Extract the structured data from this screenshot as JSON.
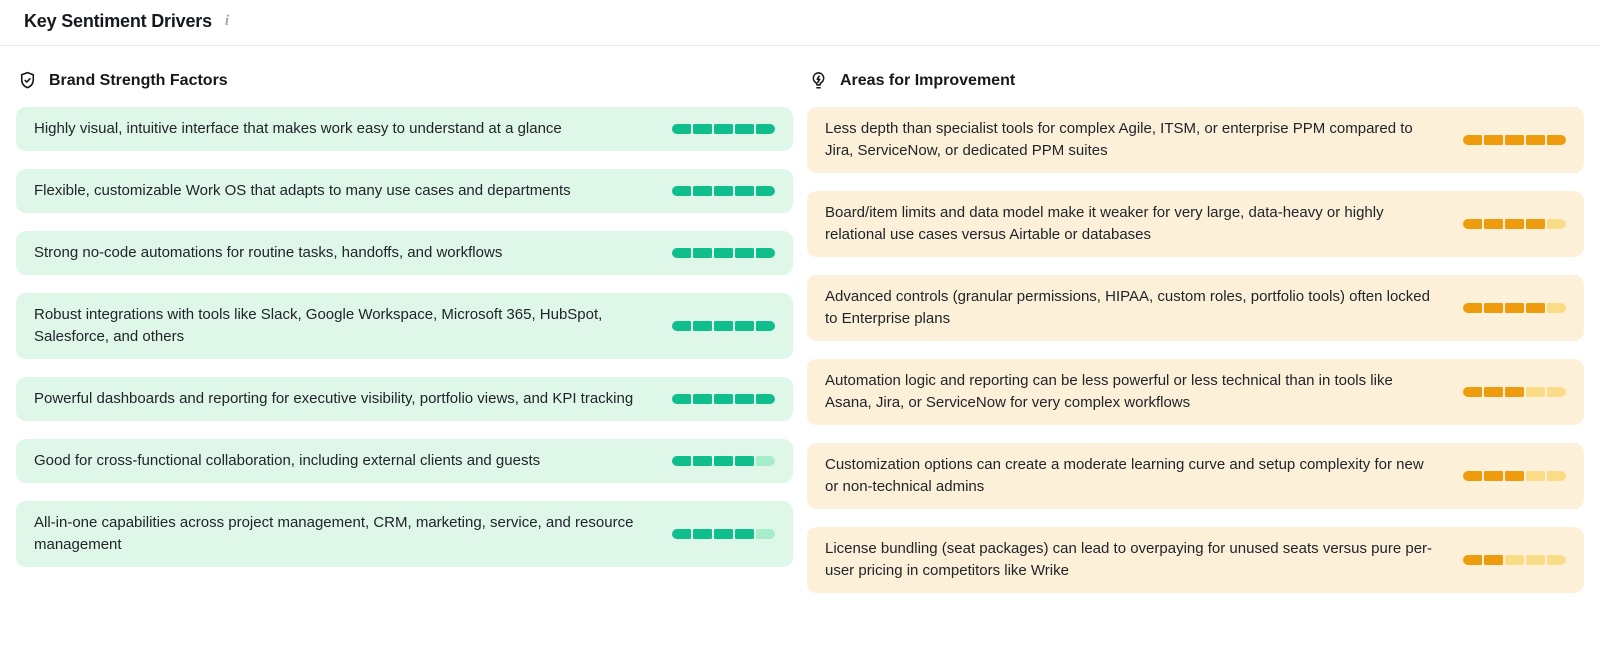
{
  "header": {
    "title": "Key Sentiment Drivers",
    "info_icon": "i"
  },
  "columns": {
    "strengths": {
      "title": "Brand Strength Factors",
      "icon": "shield-check-icon",
      "theme": {
        "card_bg": "#def7e9",
        "segment_filled": "#10bd8c",
        "segment_empty": "#a5edcb"
      },
      "items": [
        {
          "text": "Highly visual, intuitive interface that makes work easy to understand at a glance",
          "score": 5,
          "max": 5
        },
        {
          "text": "Flexible, customizable Work OS that adapts to many use cases and departments",
          "score": 5,
          "max": 5
        },
        {
          "text": "Strong no-code automations for routine tasks, handoffs, and workflows",
          "score": 5,
          "max": 5
        },
        {
          "text": "Robust integrations with tools like Slack, Google Workspace, Microsoft 365, HubSpot, Salesforce, and others",
          "score": 5,
          "max": 5
        },
        {
          "text": "Powerful dashboards and reporting for executive visibility, portfolio views, and KPI tracking",
          "score": 5,
          "max": 5
        },
        {
          "text": "Good for cross-functional collaboration, including external clients and guests",
          "score": 4,
          "max": 5
        },
        {
          "text": "All-in-one capabilities across project management, CRM, marketing, service, and resource management",
          "score": 4,
          "max": 5
        }
      ]
    },
    "improvements": {
      "title": "Areas for Improvement",
      "icon": "lightbulb-bolt-icon",
      "theme": {
        "card_bg": "#fcf1d8",
        "segment_filled": "#ee9b0e",
        "segment_empty": "#fbdc86"
      },
      "items": [
        {
          "text": "Less depth than specialist tools for complex Agile, ITSM, or enterprise PPM compared to Jira, ServiceNow, or dedicated PPM suites",
          "score": 5,
          "max": 5
        },
        {
          "text": "Board/item limits and data model make it weaker for very large, data-heavy or highly relational use cases versus Airtable or databases",
          "score": 4,
          "max": 5
        },
        {
          "text": "Advanced controls (granular permissions, HIPAA, custom roles, portfolio tools) often locked to Enterprise plans",
          "score": 4,
          "max": 5
        },
        {
          "text": "Automation logic and reporting can be less powerful or less technical than in tools like Asana, Jira, or ServiceNow for very complex workflows",
          "score": 3,
          "max": 5
        },
        {
          "text": "Customization options can create a moderate learning curve and setup complexity for new or non-technical admins",
          "score": 3,
          "max": 5
        },
        {
          "text": "License bundling (seat packages) can lead to overpaying for unused seats versus pure per-user pricing in competitors like Wrike",
          "score": 2,
          "max": 5
        }
      ]
    }
  }
}
